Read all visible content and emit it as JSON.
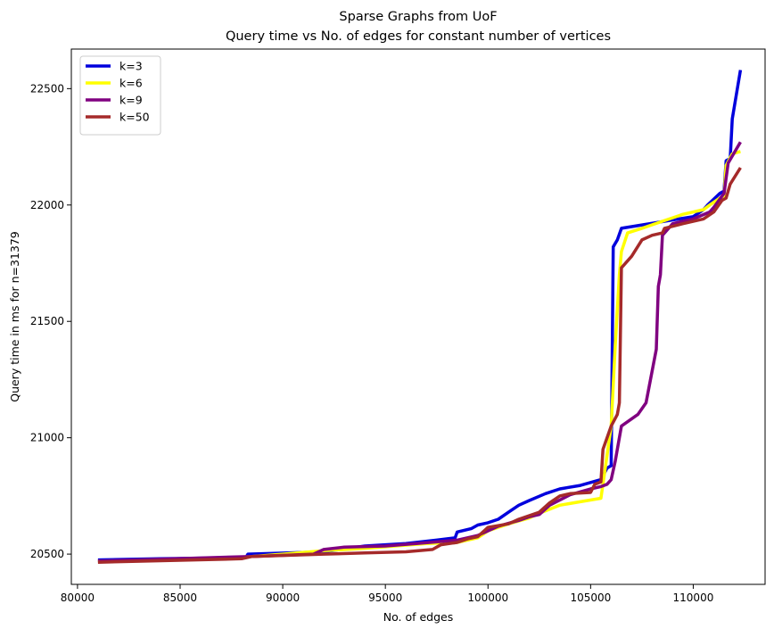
{
  "chart_data": {
    "type": "line",
    "title": "Sparse Graphs from UoF",
    "subtitle": "Query time vs No. of edges for constant number of vertices",
    "xlabel": "No. of edges",
    "ylabel": "Query time in ms for n=31379",
    "xlim": [
      79700,
      113500
    ],
    "ylim": [
      20370,
      22670
    ],
    "xticks": [
      80000,
      85000,
      90000,
      95000,
      100000,
      105000,
      110000
    ],
    "yticks": [
      20500,
      21000,
      21500,
      22000,
      22500
    ],
    "grid": false,
    "legend_position": "upper-left",
    "series": [
      {
        "name": "k=3",
        "color": "#0000dd",
        "points": [
          [
            81000,
            20475
          ],
          [
            84000,
            20480
          ],
          [
            88200,
            20485
          ],
          [
            88300,
            20500
          ],
          [
            92000,
            20510
          ],
          [
            94000,
            20535
          ],
          [
            96000,
            20545
          ],
          [
            97500,
            20560
          ],
          [
            98400,
            20570
          ],
          [
            98500,
            20595
          ],
          [
            99200,
            20610
          ],
          [
            99500,
            20625
          ],
          [
            100000,
            20635
          ],
          [
            100500,
            20650
          ],
          [
            101000,
            20680
          ],
          [
            101500,
            20710
          ],
          [
            102000,
            20730
          ],
          [
            102800,
            20760
          ],
          [
            103500,
            20780
          ],
          [
            104500,
            20795
          ],
          [
            105500,
            20820
          ],
          [
            105800,
            20870
          ],
          [
            106000,
            20880
          ],
          [
            106100,
            21820
          ],
          [
            106300,
            21850
          ],
          [
            106500,
            21900
          ],
          [
            110000,
            21950
          ],
          [
            110500,
            21980
          ],
          [
            110700,
            22000
          ],
          [
            111300,
            22050
          ],
          [
            111500,
            22060
          ],
          [
            111600,
            22190
          ],
          [
            111800,
            22200
          ],
          [
            111900,
            22370
          ],
          [
            112300,
            22580
          ]
        ]
      },
      {
        "name": "k=6",
        "color": "#ffff00",
        "points": [
          [
            81000,
            20470
          ],
          [
            85000,
            20475
          ],
          [
            88500,
            20490
          ],
          [
            90000,
            20500
          ],
          [
            92000,
            20515
          ],
          [
            94000,
            20525
          ],
          [
            97000,
            20545
          ],
          [
            98500,
            20550
          ],
          [
            99500,
            20570
          ],
          [
            100000,
            20600
          ],
          [
            101000,
            20630
          ],
          [
            102000,
            20655
          ],
          [
            102500,
            20675
          ],
          [
            103500,
            20710
          ],
          [
            104500,
            20725
          ],
          [
            105500,
            20740
          ],
          [
            105600,
            20800
          ],
          [
            106000,
            21050
          ],
          [
            106200,
            21400
          ],
          [
            106400,
            21700
          ],
          [
            106500,
            21800
          ],
          [
            106800,
            21880
          ],
          [
            107500,
            21900
          ],
          [
            108500,
            21930
          ],
          [
            109500,
            21960
          ],
          [
            110500,
            21980
          ],
          [
            110800,
            22000
          ],
          [
            111300,
            22030
          ],
          [
            111500,
            22040
          ],
          [
            111600,
            22170
          ],
          [
            111900,
            22220
          ],
          [
            112300,
            22230
          ]
        ]
      },
      {
        "name": "k=9",
        "color": "#800080",
        "points": [
          [
            81000,
            20470
          ],
          [
            88500,
            20490
          ],
          [
            91500,
            20500
          ],
          [
            92000,
            20520
          ],
          [
            93000,
            20530
          ],
          [
            95000,
            20535
          ],
          [
            96500,
            20545
          ],
          [
            98500,
            20560
          ],
          [
            99500,
            20580
          ],
          [
            100500,
            20620
          ],
          [
            101500,
            20645
          ],
          [
            102000,
            20660
          ],
          [
            102500,
            20670
          ],
          [
            103000,
            20710
          ],
          [
            104000,
            20755
          ],
          [
            105000,
            20780
          ],
          [
            105500,
            20790
          ],
          [
            105800,
            20800
          ],
          [
            106000,
            20820
          ],
          [
            106200,
            20900
          ],
          [
            106500,
            21050
          ],
          [
            107300,
            21100
          ],
          [
            107700,
            21150
          ],
          [
            108200,
            21380
          ],
          [
            108300,
            21650
          ],
          [
            108400,
            21700
          ],
          [
            108500,
            21870
          ],
          [
            109000,
            21920
          ],
          [
            110000,
            21940
          ],
          [
            110800,
            21970
          ],
          [
            111000,
            21990
          ],
          [
            111500,
            22050
          ],
          [
            111700,
            22180
          ],
          [
            112300,
            22270
          ]
        ]
      },
      {
        "name": "k=50",
        "color": "#a52a2a",
        "points": [
          [
            81000,
            20465
          ],
          [
            88000,
            20480
          ],
          [
            88500,
            20490
          ],
          [
            92000,
            20500
          ],
          [
            94000,
            20505
          ],
          [
            96000,
            20510
          ],
          [
            97300,
            20520
          ],
          [
            97700,
            20540
          ],
          [
            98500,
            20550
          ],
          [
            99000,
            20565
          ],
          [
            99500,
            20575
          ],
          [
            100000,
            20615
          ],
          [
            101000,
            20630
          ],
          [
            101500,
            20650
          ],
          [
            102500,
            20680
          ],
          [
            103000,
            20720
          ],
          [
            103500,
            20750
          ],
          [
            104000,
            20760
          ],
          [
            105000,
            20765
          ],
          [
            105200,
            20800
          ],
          [
            105500,
            20810
          ],
          [
            105600,
            20950
          ],
          [
            106000,
            21050
          ],
          [
            106300,
            21100
          ],
          [
            106400,
            21150
          ],
          [
            106500,
            21730
          ],
          [
            107000,
            21780
          ],
          [
            107500,
            21850
          ],
          [
            108000,
            21870
          ],
          [
            108500,
            21880
          ],
          [
            108600,
            21900
          ],
          [
            109500,
            21920
          ],
          [
            110500,
            21940
          ],
          [
            111000,
            21970
          ],
          [
            111400,
            22020
          ],
          [
            111600,
            22030
          ],
          [
            111800,
            22090
          ],
          [
            112300,
            22160
          ]
        ]
      }
    ]
  }
}
